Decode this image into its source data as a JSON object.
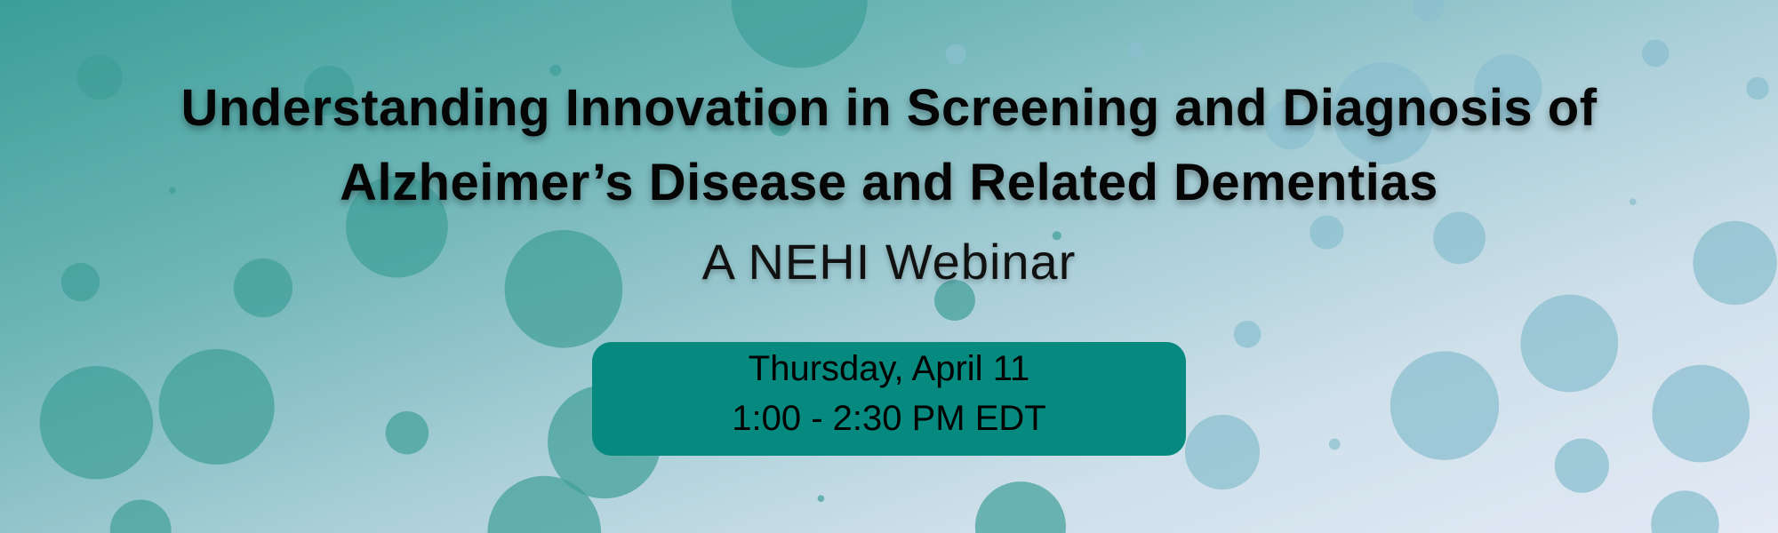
{
  "banner": {
    "title_line1": "Understanding Innovation in Screening and Diagnosis of",
    "title_line2": "Alzheimer’s Disease and Related Dementias",
    "subtitle": "A NEHI Webinar",
    "date": "Thursday, April 11",
    "time": "1:00 - 2:30 PM EDT"
  },
  "colors": {
    "box": "#06897f",
    "bubble_left": "#3f9e99",
    "bubble_right": "#8bbfcf"
  }
}
